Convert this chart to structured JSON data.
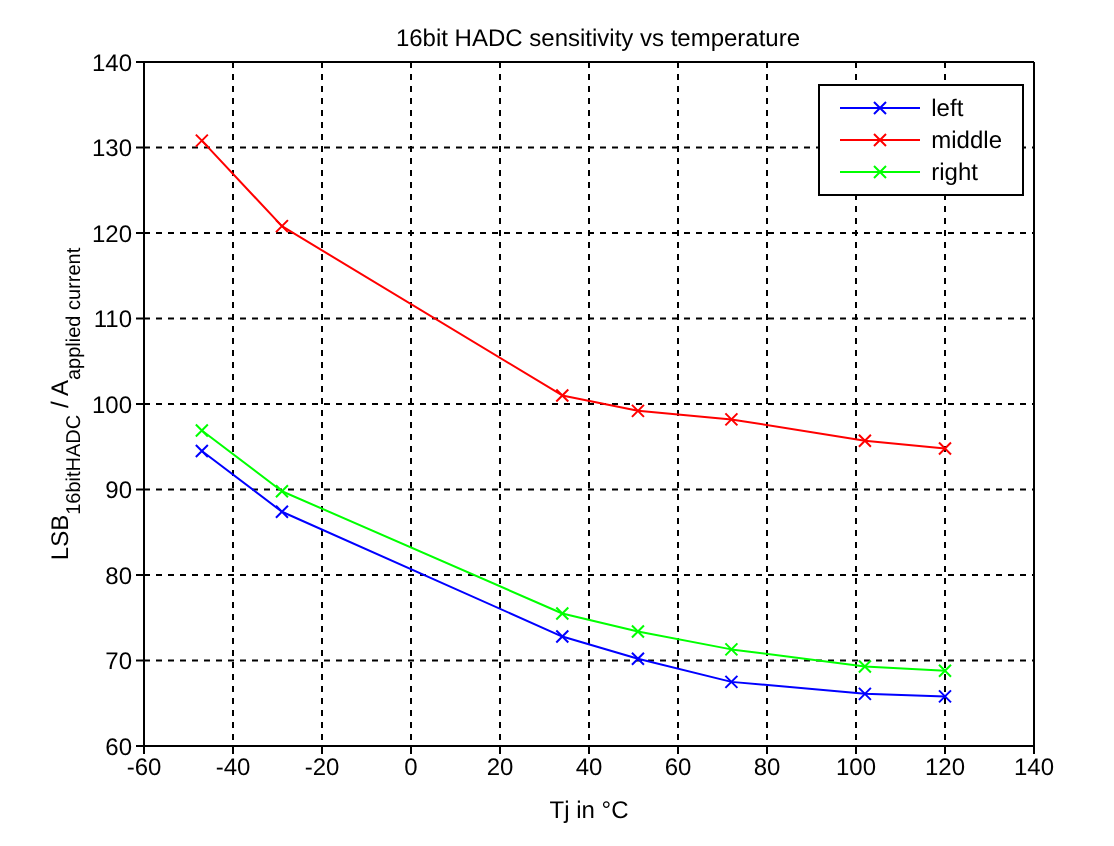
{
  "chart_data": {
    "type": "line",
    "title": "16bit HADC sensitivity vs temperature",
    "xlabel": "Tj in °C",
    "ylabel": "LSB$_{16bitHADC}$ / A$_{applied current}$",
    "x": [
      -47,
      -29,
      34,
      51,
      72,
      102,
      120
    ],
    "series": [
      {
        "name": "left",
        "color": "#0000ff",
        "values": [
          94.5,
          87.4,
          72.8,
          70.2,
          67.5,
          66.1,
          65.8
        ]
      },
      {
        "name": "middle",
        "color": "#ff0000",
        "values": [
          130.8,
          120.8,
          101,
          99.2,
          98.2,
          95.7,
          94.8
        ]
      },
      {
        "name": "right",
        "color": "#00ff00",
        "values": [
          96.9,
          89.8,
          75.5,
          73.4,
          71.3,
          69.3,
          68.8
        ]
      }
    ],
    "xlim": [
      -60,
      140
    ],
    "xticks": [
      -60,
      -40,
      -20,
      0,
      20,
      40,
      60,
      80,
      100,
      120,
      140
    ],
    "ylim": [
      60,
      140
    ],
    "yticks": [
      60,
      70,
      80,
      90,
      100,
      110,
      120,
      130,
      140
    ],
    "grid": true,
    "legend": "top right",
    "marker": "cross",
    "line_style": "solid"
  }
}
